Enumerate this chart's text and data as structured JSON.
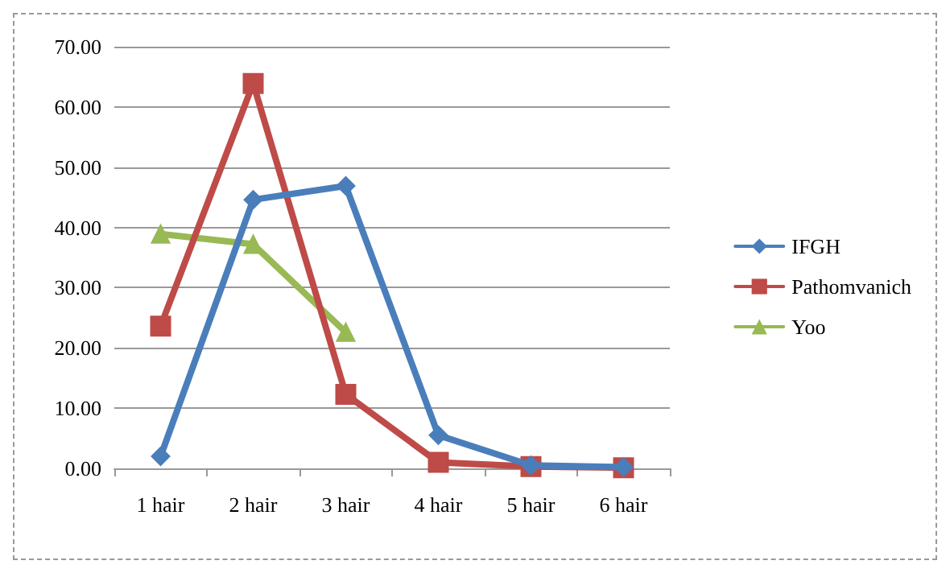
{
  "chart_data": {
    "type": "line",
    "categories": [
      "1 hair",
      "2 hair",
      "3 hair",
      "4 hair",
      "5 hair",
      "6 hair"
    ],
    "series": [
      {
        "name": "IFGH",
        "color": "#4a7ebb",
        "marker": "diamond",
        "values": [
          2.0,
          44.6,
          46.9,
          5.5,
          0.5,
          0.2
        ]
      },
      {
        "name": "Pathomvanich",
        "color": "#be4b48",
        "marker": "square",
        "values": [
          23.6,
          63.9,
          12.3,
          1.0,
          0.3,
          0.1
        ]
      },
      {
        "name": "Yoo",
        "color": "#98b954",
        "marker": "triangle",
        "values": [
          38.9,
          37.2,
          22.6,
          null,
          null,
          null
        ]
      }
    ],
    "ylim": [
      0,
      70
    ],
    "yticks": [
      {
        "value": 0,
        "label": "0.00"
      },
      {
        "value": 10,
        "label": "10.00"
      },
      {
        "value": 20,
        "label": "20.00"
      },
      {
        "value": 30,
        "label": "30.00"
      },
      {
        "value": 40,
        "label": "40.00"
      },
      {
        "value": 50,
        "label": "50.00"
      },
      {
        "value": 60,
        "label": "60.00"
      },
      {
        "value": 70,
        "label": "70.00"
      }
    ],
    "grid": "y",
    "legend": "right",
    "line_style": "solid"
  }
}
